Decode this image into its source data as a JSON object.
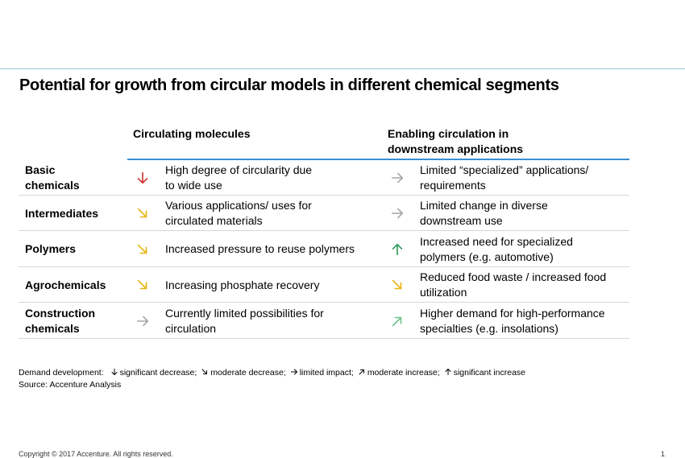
{
  "title": "Potential for growth from circular models in different chemical segments",
  "columns": {
    "circulating": "Circulating molecules",
    "enabling_line1": "Enabling circulation in",
    "enabling_line2": "downstream applications"
  },
  "colors": {
    "significant_decrease": "#d0302b",
    "moderate_decrease": "#e5b512",
    "limited_impact": "#a6a6a6",
    "moderate_increase": "#6cc38f",
    "significant_increase": "#2b9a58"
  },
  "rows": [
    {
      "segment_line1": "Basic",
      "segment_line2": "chemicals",
      "c1_icon": "arrow-down-icon",
      "c1_line1": "High degree of circularity due",
      "c1_line2": "to wide use",
      "c2_icon": "arrow-right-icon",
      "c2_line1": "Limited “specialized” applications/",
      "c2_line2": "requirements"
    },
    {
      "segment_line1": "Intermediates",
      "segment_line2": "",
      "c1_icon": "arrow-down-right-icon",
      "c1_line1": "Various applications/ uses for",
      "c1_line2": "circulated materials",
      "c2_icon": "arrow-right-icon",
      "c2_line1": "Limited change in diverse",
      "c2_line2": "downstream use"
    },
    {
      "segment_line1": "Polymers",
      "segment_line2": "",
      "c1_icon": "arrow-down-right-icon",
      "c1_line1": "Increased pressure to reuse polymers",
      "c1_line2": "",
      "c2_icon": "arrow-up-icon",
      "c2_line1": "Increased need for specialized",
      "c2_line2": "polymers (e.g. automotive)"
    },
    {
      "segment_line1": "Agrochemicals",
      "segment_line2": "",
      "c1_icon": "arrow-down-right-icon",
      "c1_line1": "Increasing phosphate recovery",
      "c1_line2": "",
      "c2_icon": "arrow-down-right-icon",
      "c2_line1": "Reduced food waste / increased food",
      "c2_line2": "utilization"
    },
    {
      "segment_line1": "Construction",
      "segment_line2": "chemicals",
      "c1_icon": "arrow-right-icon",
      "c1_line1": "Currently limited possibilities for",
      "c1_line2": "circulation",
      "c2_icon": "arrow-up-right-icon",
      "c2_line1": "Higher demand for high-performance",
      "c2_line2": "specialties (e.g. insolations)"
    }
  ],
  "legend": {
    "prefix": "Demand development:",
    "items": [
      {
        "icon": "arrow-down-icon",
        "label": "significant decrease;"
      },
      {
        "icon": "arrow-down-right-icon",
        "label": "moderate decrease;"
      },
      {
        "icon": "arrow-right-icon",
        "label": "limited impact;"
      },
      {
        "icon": "arrow-up-right-icon",
        "label": "moderate increase;"
      },
      {
        "icon": "arrow-up-icon",
        "label": "significant increase"
      }
    ]
  },
  "source": "Source: Accenture Analysis",
  "footer": "Copyright © 2017 Accenture. All rights reserved.",
  "page_number": "1"
}
